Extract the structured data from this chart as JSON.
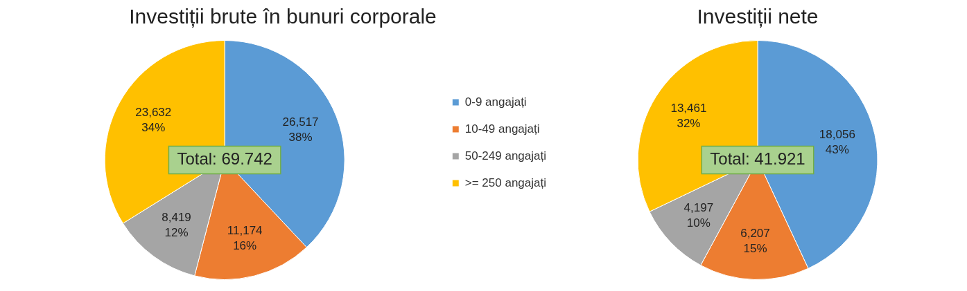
{
  "chart_data": [
    {
      "type": "pie",
      "title": "Investiții brute în bunuri corporale",
      "categories": [
        "0-9 angajați",
        "10-49 angajați",
        "50-249 angajați",
        ">= 250 angajați"
      ],
      "values": [
        26517,
        11174,
        8419,
        23632
      ],
      "colors": [
        "#5b9bd5",
        "#ed7d31",
        "#a5a5a5",
        "#ffc000"
      ],
      "value_labels": [
        "26,517\n38%",
        "11,174\n16%",
        "8,419\n12%",
        "23,632\n34%"
      ],
      "annotations": [
        "Total: 69.742"
      ],
      "legend": "right"
    },
    {
      "type": "pie",
      "title": "Investiții nete",
      "categories": [
        null,
        null,
        null,
        null
      ],
      "values": [
        18056,
        6207,
        4197,
        13461
      ],
      "colors": [
        "#5b9bd5",
        "#ed7d31",
        "#a5a5a5",
        "#ffc000"
      ],
      "value_labels": [
        "18,056\n43%",
        "6,207\n15%",
        "4,197\n10%",
        "13,461\n32%"
      ],
      "annotations": [
        "Total: 41.921"
      ],
      "legend": false
    }
  ]
}
